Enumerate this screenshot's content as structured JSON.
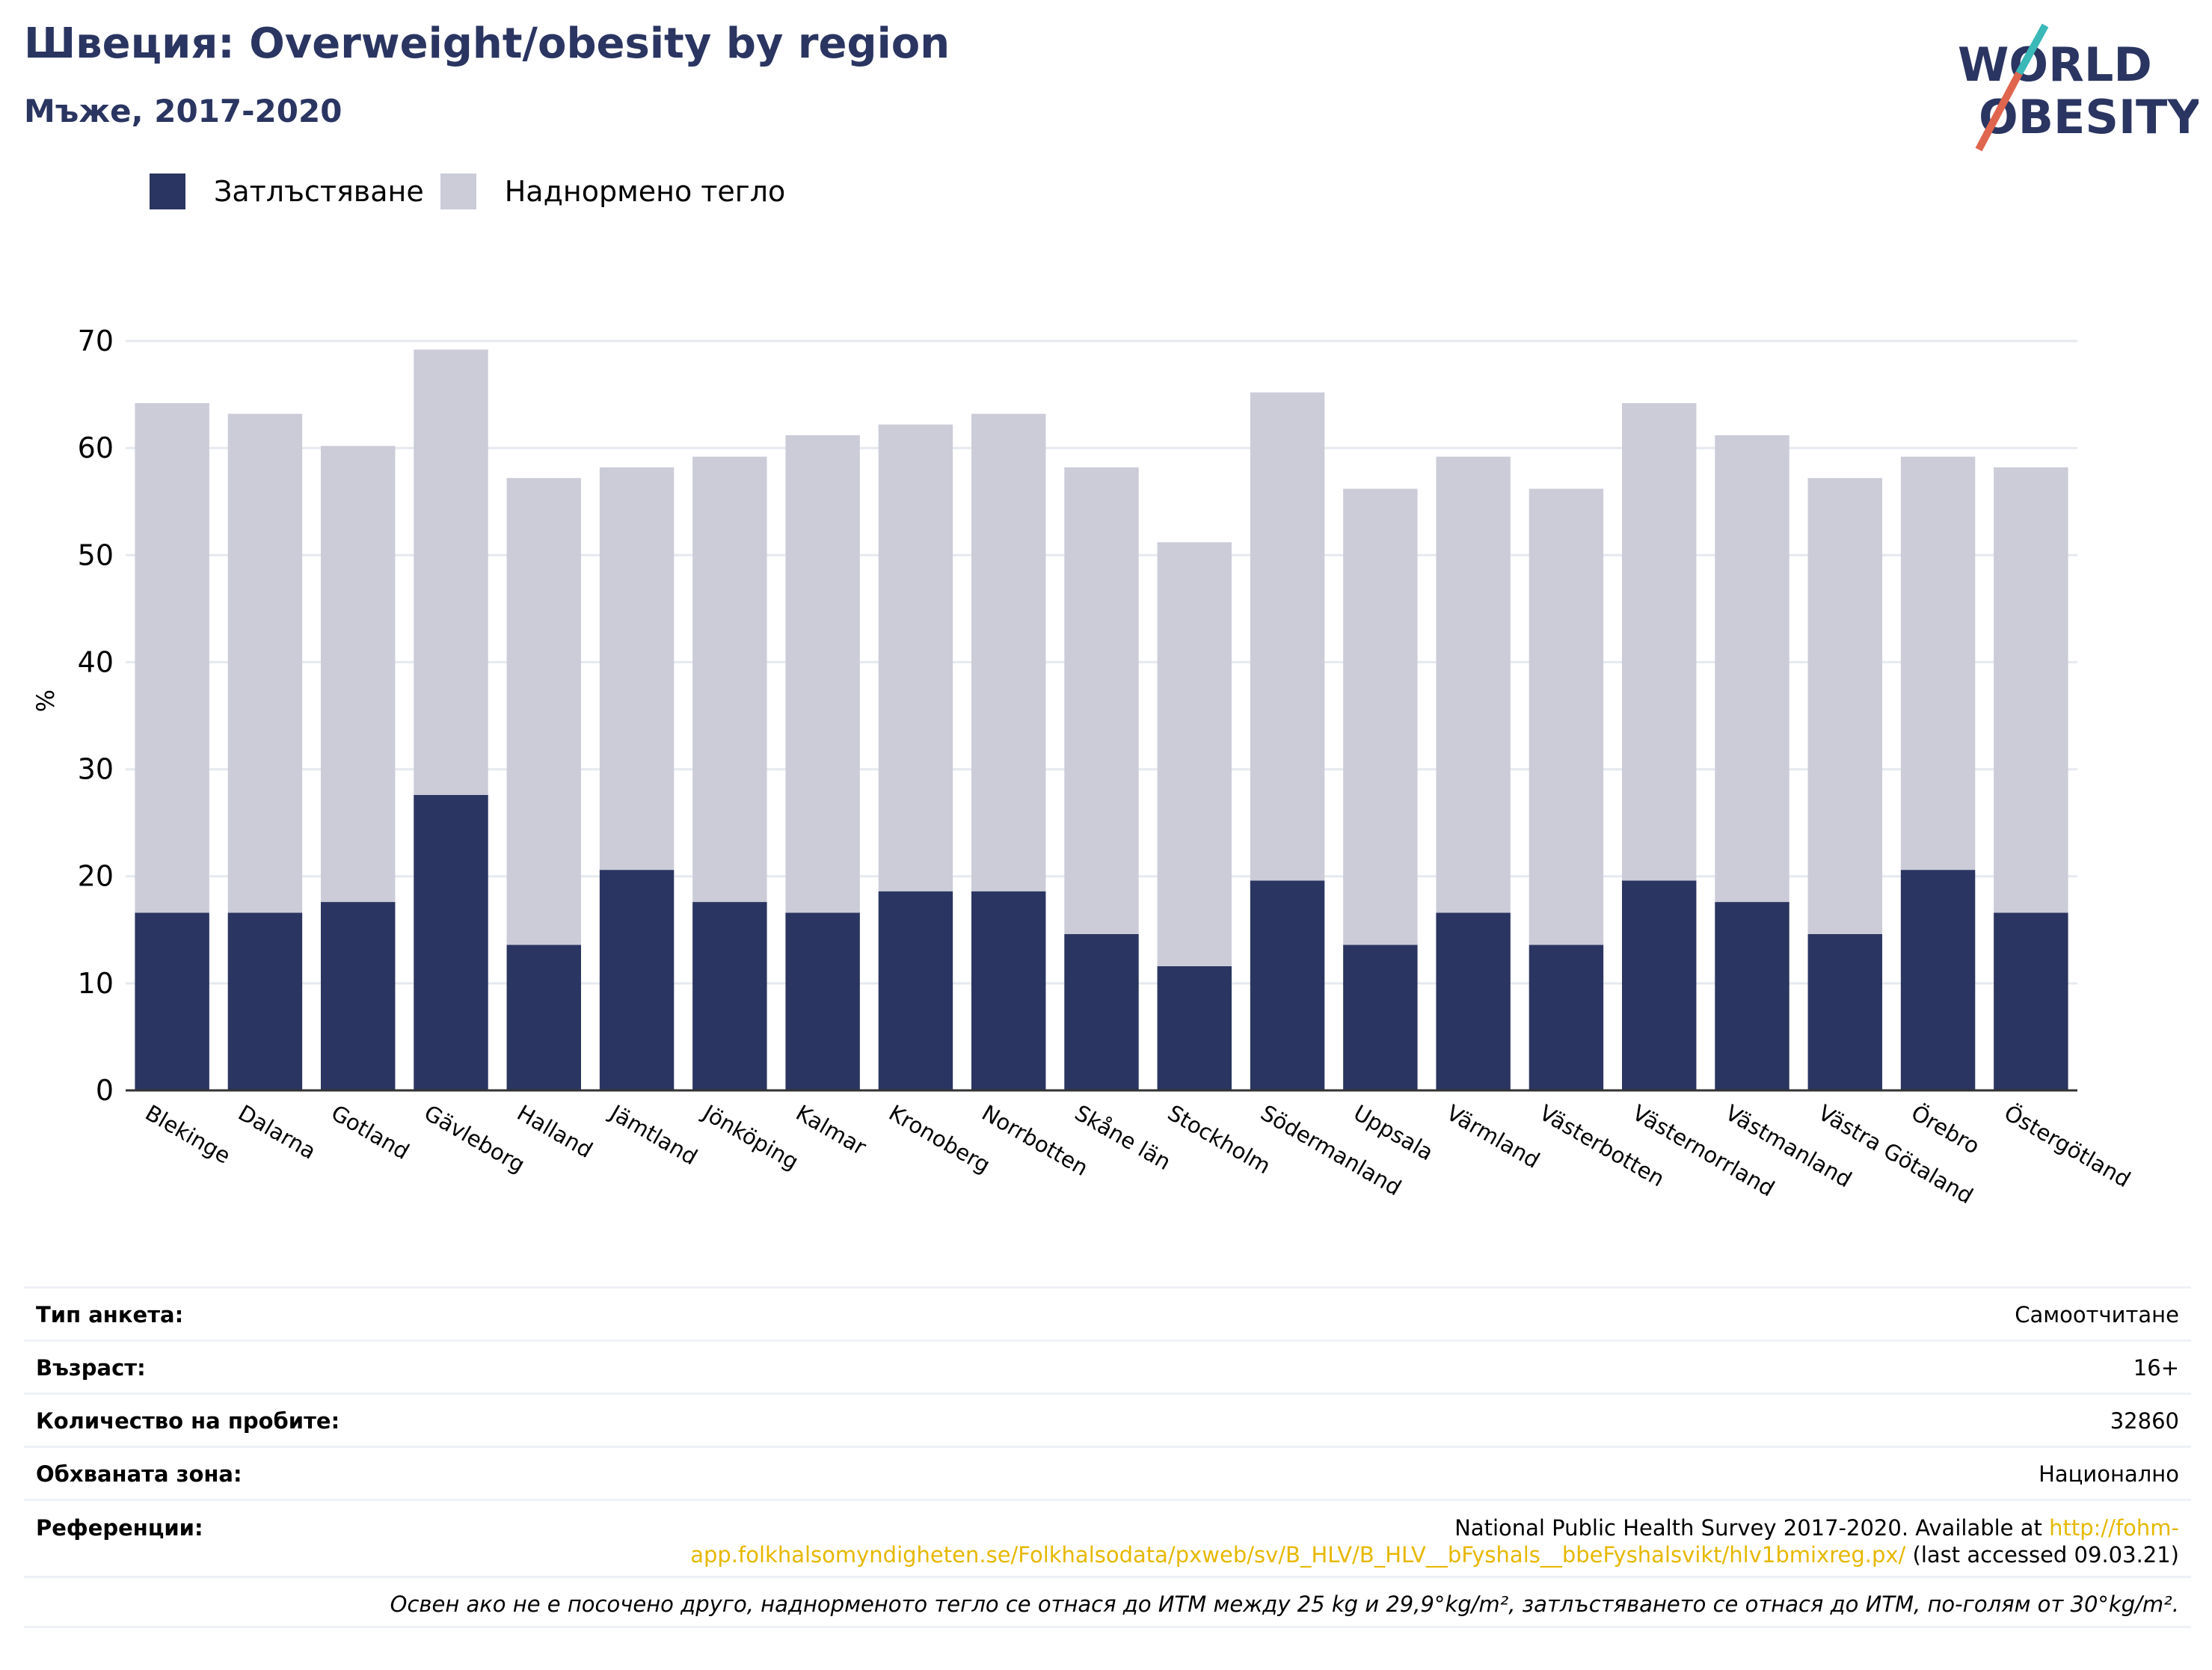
{
  "header": {
    "title": "Швеция: Overweight/obesity by region",
    "subtitle": "Мъже, 2017-2020"
  },
  "logo": {
    "line1": "WORLD",
    "line2": "OBESITY"
  },
  "colors": {
    "obesity": "#2a3561",
    "overweight": "#cbccd8",
    "title": "#2a3561",
    "link": "#e6b800",
    "logo_slash_teal": "#3bb8b8",
    "logo_slash_red": "#e0654f"
  },
  "legend": [
    {
      "label": "Затлъстяване",
      "color": "#2a3561"
    },
    {
      "label": "Наднормено тегло",
      "color": "#cbccd8"
    }
  ],
  "chart_data": {
    "type": "bar",
    "stacked": true,
    "ylabel": "%",
    "xlabel": "",
    "ylim": [
      0,
      70
    ],
    "yticks": [
      0,
      10,
      20,
      30,
      40,
      50,
      60,
      70
    ],
    "grid": true,
    "legend_position": "top-left",
    "categories": [
      "Blekinge",
      "Dalarna",
      "Gotland",
      "Gävleborg",
      "Halland",
      "Jämtland",
      "Jönköping",
      "Kalmar",
      "Kronoberg",
      "Norrbotten",
      "Skåne län",
      "Stockholm",
      "Södermanland",
      "Uppsala",
      "Värmland",
      "Västerbotten",
      "Västernorrland",
      "Västmanland",
      "Västra Götaland",
      "Örebro",
      "Östergötland"
    ],
    "series": [
      {
        "name": "Затлъстяване",
        "values": [
          16.6,
          16.6,
          17.6,
          27.6,
          13.6,
          20.6,
          17.6,
          16.6,
          18.6,
          18.6,
          14.6,
          11.6,
          19.6,
          13.6,
          16.6,
          13.6,
          19.6,
          17.6,
          14.6,
          20.6,
          16.6
        ]
      },
      {
        "name": "Наднормено тегло",
        "values": [
          47.6,
          46.6,
          42.6,
          41.6,
          43.6,
          37.6,
          41.6,
          44.6,
          43.6,
          44.6,
          43.6,
          39.6,
          45.6,
          42.6,
          42.6,
          42.6,
          44.6,
          43.6,
          42.6,
          38.6,
          41.6
        ]
      }
    ]
  },
  "info": {
    "rows": [
      {
        "label": "Тип анкета:",
        "value": "Самоотчитане"
      },
      {
        "label": "Възраст:",
        "value": "16+"
      },
      {
        "label": "Количество на пробите:",
        "value": "32860"
      },
      {
        "label": "Обхваната зона:",
        "value": "Национално"
      }
    ],
    "references": {
      "label": "Референции:",
      "text_before": "National Public Health Survey 2017-2020. Available at ",
      "link": "http://fohm-app.folkhalsomyndigheten.se/Folkhalsodata/pxweb/sv/B_HLV/B_HLV__bFyshals__bbeFyshalsvikt/hlv1bmixreg.px/",
      "text_after": " (last accessed 09.03.21)"
    },
    "note": "Освен ако не е посочено друго, наднорменото тегло се отнася до ИТМ между 25 kg и 29,9°kg/m², затлъстяването се отнася до ИТМ, по-голям от 30°kg/m²."
  }
}
